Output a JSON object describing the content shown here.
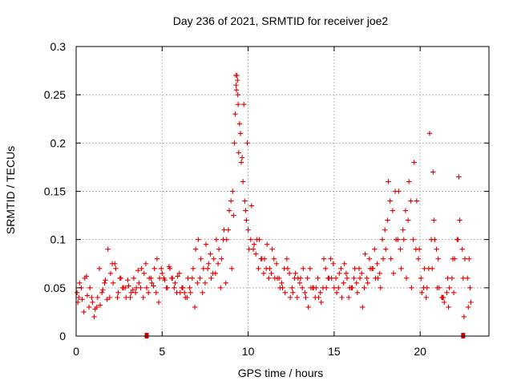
{
  "chart_data": {
    "type": "scatter",
    "title": "Day 236 of 2021, SRMTID for receiver joe2",
    "xlabel": "GPS time / hours",
    "ylabel": "SRMTID / TECUs",
    "xlim": [
      0,
      24
    ],
    "ylim": [
      0,
      0.3
    ],
    "xticks": [
      0,
      5,
      10,
      15,
      20
    ],
    "xtick_labels": [
      "0",
      "5",
      "10",
      "15",
      "20"
    ],
    "yticks": [
      0,
      0.05,
      0.1,
      0.15,
      0.2,
      0.25,
      0.3
    ],
    "ytick_labels": [
      "0",
      "0.05",
      "0.1",
      "0.15",
      "0.2",
      "0.25",
      "0.3"
    ],
    "grid": true,
    "marker": "+",
    "color": "#e00000",
    "gap_markers_x": [
      4.1,
      22.5
    ],
    "series": [
      {
        "name": "SRMTID",
        "x": [
          0.05,
          0.2,
          0.35,
          0.5,
          0.65,
          0.8,
          0.95,
          1.1,
          1.25,
          1.4,
          1.55,
          1.7,
          1.85,
          2.0,
          2.15,
          2.3,
          2.45,
          2.6,
          2.75,
          2.9,
          3.05,
          3.2,
          3.35,
          3.5,
          3.65,
          3.8,
          3.95,
          4.1,
          4.25,
          4.4,
          4.55,
          4.7,
          4.85,
          5.0,
          5.15,
          5.3,
          5.45,
          5.6,
          5.75,
          5.9,
          6.05,
          6.2,
          6.35,
          6.5,
          6.65,
          6.8,
          6.95,
          7.1,
          7.25,
          7.4,
          7.55,
          7.7,
          7.85,
          8.0,
          8.15,
          8.3,
          8.45,
          8.6,
          8.75,
          8.9,
          9.0,
          9.1,
          9.2,
          9.25,
          9.3,
          9.35,
          9.4,
          9.5,
          9.6,
          9.7,
          9.8,
          9.9,
          10.0,
          10.15,
          10.3,
          10.45,
          10.6,
          10.75,
          10.9,
          11.05,
          11.2,
          11.35,
          11.5,
          11.65,
          11.8,
          11.95,
          12.1,
          12.25,
          12.4,
          12.55,
          12.7,
          12.85,
          13.0,
          13.15,
          13.3,
          13.45,
          13.6,
          13.75,
          13.9,
          14.05,
          14.2,
          14.35,
          14.5,
          14.65,
          14.8,
          14.95,
          15.1,
          15.25,
          15.4,
          15.55,
          15.7,
          15.85,
          16.0,
          16.15,
          16.3,
          16.45,
          16.6,
          16.75,
          16.9,
          17.05,
          17.2,
          17.35,
          17.5,
          17.65,
          17.8,
          17.95,
          18.1,
          18.25,
          18.4,
          18.55,
          18.7,
          18.85,
          19.0,
          19.15,
          19.3,
          19.45,
          19.6,
          19.75,
          19.9,
          20.05,
          20.2,
          20.35,
          20.5,
          20.65,
          20.8,
          20.95,
          21.1,
          21.25,
          21.4,
          21.55,
          21.7,
          21.85,
          22.0,
          22.15,
          22.3,
          22.45,
          22.6,
          22.75,
          22.9,
          0.1,
          0.3,
          0.6,
          0.9,
          1.2,
          1.5,
          1.8,
          2.1,
          2.4,
          2.7,
          3.0,
          3.3,
          3.6,
          3.9,
          4.2,
          4.5,
          4.8,
          5.1,
          5.4,
          5.7,
          6.0,
          6.3,
          6.6,
          6.9,
          7.2,
          7.5,
          7.8,
          8.1,
          8.4,
          8.7,
          9.05,
          9.15,
          9.45,
          9.55,
          9.75,
          9.95,
          10.2,
          10.5,
          10.8,
          11.1,
          11.4,
          11.7,
          12.0,
          12.3,
          12.6,
          12.9,
          13.2,
          13.5,
          13.8,
          14.1,
          14.4,
          14.7,
          15.0,
          15.3,
          15.6,
          15.9,
          16.2,
          16.5,
          16.8,
          17.1,
          17.4,
          17.7,
          18.0,
          18.3,
          18.6,
          18.9,
          19.2,
          19.5,
          19.8,
          20.1,
          20.4,
          20.7,
          20.85,
          21.0,
          21.3,
          21.6,
          21.9,
          22.2,
          22.5,
          22.8,
          22.95,
          0.15,
          0.45,
          0.75,
          1.05,
          1.35,
          1.65,
          1.95,
          2.25,
          2.55,
          2.85,
          3.15,
          3.45,
          3.75,
          4.05,
          4.35,
          4.65,
          4.95,
          5.25,
          5.55,
          5.85,
          6.15,
          6.45,
          6.75,
          7.05,
          7.35,
          7.65,
          7.95,
          8.25,
          8.55,
          8.85,
          9.28,
          9.32,
          9.38,
          9.42,
          9.65,
          9.85,
          10.05,
          10.35,
          10.65,
          10.95,
          11.25,
          11.55,
          11.85,
          12.15,
          12.45,
          12.75,
          13.05,
          13.35,
          13.65,
          13.95,
          14.25,
          14.55,
          14.85,
          15.15,
          15.45,
          15.75,
          16.05,
          16.35,
          16.65,
          16.95,
          17.25,
          17.55,
          17.85,
          18.15,
          18.45,
          18.75,
          19.05,
          19.35,
          19.65,
          19.95,
          20.25,
          20.55,
          20.75,
          21.05,
          21.35,
          21.65,
          21.95,
          22.25,
          22.55,
          22.85
        ],
        "y": [
          0.045,
          0.055,
          0.038,
          0.06,
          0.042,
          0.05,
          0.035,
          0.028,
          0.04,
          0.032,
          0.048,
          0.058,
          0.09,
          0.065,
          0.055,
          0.07,
          0.045,
          0.06,
          0.05,
          0.04,
          0.052,
          0.045,
          0.06,
          0.05,
          0.055,
          0.07,
          0.065,
          0.05,
          0.06,
          0.055,
          0.07,
          0.08,
          0.06,
          0.065,
          0.058,
          0.05,
          0.07,
          0.06,
          0.055,
          0.062,
          0.045,
          0.05,
          0.04,
          0.06,
          0.045,
          0.07,
          0.09,
          0.1,
          0.08,
          0.07,
          0.095,
          0.075,
          0.06,
          0.08,
          0.1,
          0.09,
          0.08,
          0.11,
          0.1,
          0.13,
          0.14,
          0.15,
          0.2,
          0.23,
          0.26,
          0.27,
          0.25,
          0.22,
          0.18,
          0.16,
          0.14,
          0.12,
          0.11,
          0.1,
          0.09,
          0.085,
          0.07,
          0.08,
          0.065,
          0.07,
          0.06,
          0.065,
          0.08,
          0.075,
          0.06,
          0.055,
          0.07,
          0.08,
          0.065,
          0.05,
          0.06,
          0.04,
          0.055,
          0.05,
          0.045,
          0.06,
          0.07,
          0.05,
          0.04,
          0.06,
          0.045,
          0.05,
          0.07,
          0.06,
          0.08,
          0.075,
          0.06,
          0.05,
          0.07,
          0.055,
          0.065,
          0.04,
          0.05,
          0.06,
          0.055,
          0.07,
          0.065,
          0.05,
          0.06,
          0.08,
          0.07,
          0.09,
          0.075,
          0.065,
          0.1,
          0.11,
          0.12,
          0.14,
          0.13,
          0.15,
          0.1,
          0.09,
          0.11,
          0.13,
          0.12,
          0.14,
          0.1,
          0.09,
          0.08,
          0.06,
          0.05,
          0.04,
          0.07,
          0.1,
          0.12,
          0.09,
          0.05,
          0.04,
          0.035,
          0.045,
          0.05,
          0.06,
          0.08,
          0.1,
          0.12,
          0.09,
          0.08,
          0.06,
          0.05,
          0.035,
          0.05,
          0.062,
          0.04,
          0.03,
          0.045,
          0.038,
          0.075,
          0.04,
          0.05,
          0.058,
          0.048,
          0.068,
          0.04,
          0.045,
          0.052,
          0.035,
          0.06,
          0.072,
          0.05,
          0.065,
          0.045,
          0.05,
          0.03,
          0.06,
          0.055,
          0.085,
          0.065,
          0.05,
          0.055,
          0.07,
          0.125,
          0.19,
          0.21,
          0.24,
          0.2,
          0.135,
          0.1,
          0.08,
          0.095,
          0.09,
          0.06,
          0.05,
          0.07,
          0.045,
          0.06,
          0.07,
          0.03,
          0.05,
          0.04,
          0.08,
          0.06,
          0.05,
          0.065,
          0.075,
          0.05,
          0.07,
          0.06,
          0.085,
          0.07,
          0.06,
          0.05,
          0.09,
          0.08,
          0.1,
          0.07,
          0.06,
          0.05,
          0.14,
          0.045,
          0.05,
          0.07,
          0.1,
          0.05,
          0.04,
          0.06,
          0.08,
          0.1,
          0.06,
          0.03,
          0.035,
          0.04,
          0.025,
          0.03,
          0.02,
          0.07,
          0.055,
          0.04,
          0.075,
          0.06,
          0.05,
          0.04,
          0.045,
          0.05,
          0.075,
          0.06,
          0.045,
          0.07,
          0.05,
          0.06,
          0.045,
          0.05,
          0.04,
          0.06,
          0.055,
          0.045,
          0.07,
          0.065,
          0.075,
          0.1,
          0.11,
          0.27,
          0.255,
          0.265,
          0.24,
          0.185,
          0.13,
          0.09,
          0.095,
          0.1,
          0.08,
          0.07,
          0.06,
          0.05,
          0.045,
          0.04,
          0.065,
          0.06,
          0.04,
          0.05,
          0.05,
          0.035,
          0.05,
          0.06,
          0.045,
          0.04,
          0.06,
          0.05,
          0.045,
          0.03,
          0.055,
          0.07,
          0.06,
          0.08,
          0.16,
          0.065,
          0.15,
          0.1,
          0.16,
          0.18,
          0.09,
          0.07,
          0.21,
          0.17,
          0.08,
          0.04,
          0.03,
          0.045,
          0.165,
          0.02,
          0.08
        ]
      }
    ]
  }
}
